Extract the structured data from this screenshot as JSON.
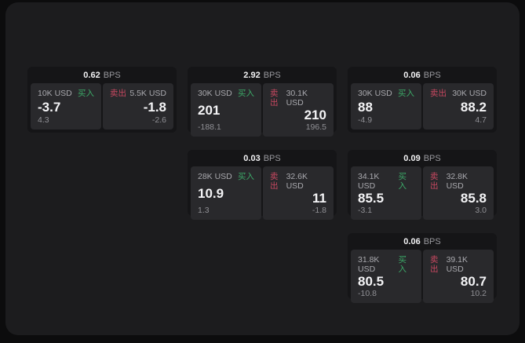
{
  "labels": {
    "buy": "买入",
    "sell": "卖出",
    "bps_unit": "BPS"
  },
  "theme": {
    "outer_background": "#0c0c0d",
    "panel_background": "#1c1c1e",
    "card_background": "#151517",
    "quote_panel_background": "#29292c",
    "primary_text": "#f4f4f6",
    "secondary_text": "#a9a9ae",
    "buy_green": "#3ca968",
    "sell_red": "#c84860"
  },
  "cards": [
    {
      "bps": "0.62",
      "buy": {
        "amount": "10K USD",
        "main": "-3.7",
        "sub": "4.3"
      },
      "sell": {
        "amount": "5.5K USD",
        "main": "-1.8",
        "sub": "-2.6"
      }
    },
    {
      "bps": "2.92",
      "buy": {
        "amount": "30K USD",
        "main": "201",
        "sub": "-188.1"
      },
      "sell": {
        "amount": "30.1K USD",
        "main": "210",
        "sub": "196.5"
      }
    },
    {
      "bps": "0.06",
      "buy": {
        "amount": "30K USD",
        "main": "88",
        "sub": "-4.9"
      },
      "sell": {
        "amount": "30K USD",
        "main": "88.2",
        "sub": "4.7"
      }
    },
    {
      "bps": "0.03",
      "buy": {
        "amount": "28K USD",
        "main": "10.9",
        "sub": "1.3"
      },
      "sell": {
        "amount": "32.6K USD",
        "main": "11",
        "sub": "-1.8"
      }
    },
    {
      "bps": "0.09",
      "buy": {
        "amount": "34.1K USD",
        "main": "85.5",
        "sub": "-3.1"
      },
      "sell": {
        "amount": "32.8K USD",
        "main": "85.8",
        "sub": "3.0"
      }
    },
    {
      "bps": "0.06",
      "buy": {
        "amount": "31.8K USD",
        "main": "80.5",
        "sub": "-10.8"
      },
      "sell": {
        "amount": "39.1K USD",
        "main": "80.7",
        "sub": "10.2"
      }
    }
  ]
}
